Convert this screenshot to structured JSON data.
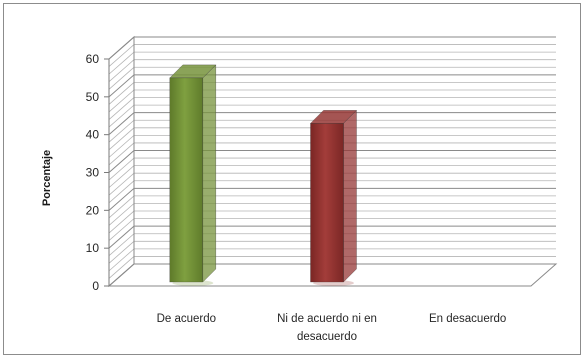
{
  "chart_data": {
    "type": "bar",
    "title": "",
    "xlabel": "",
    "ylabel": "Porcentaje",
    "ylim": [
      0,
      60
    ],
    "yticks": [
      0,
      10,
      20,
      30,
      40,
      50,
      60
    ],
    "grid": true,
    "legend": "none",
    "categories": [
      [
        "De acuerdo"
      ],
      [
        "Ni de acuerdo ni en",
        "desacuerdo"
      ],
      [
        "En desacuerdo"
      ]
    ],
    "values": [
      55,
      43,
      0
    ],
    "colors": [
      "#77933c",
      "#953735",
      "#4f81bd"
    ]
  }
}
